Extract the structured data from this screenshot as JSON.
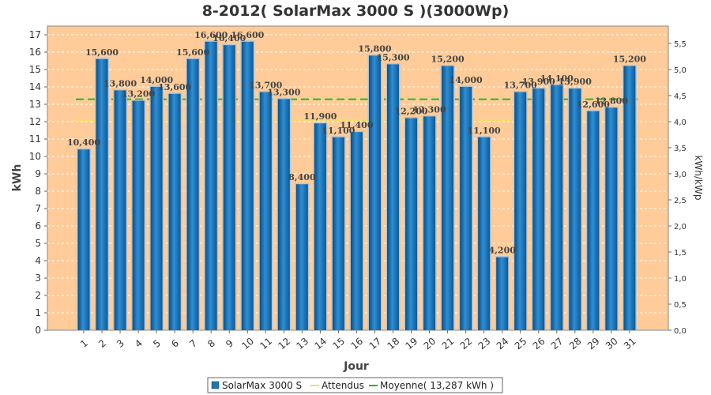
{
  "chart_data": {
    "type": "bar",
    "title": "8-2012( SolarMax 3000 S )(3000Wp)",
    "xlabel": "Jour",
    "ylabel": "kWh",
    "y2label": "kWh/kWp",
    "ylim": [
      0,
      17.5
    ],
    "y2lim": [
      0,
      5.8333
    ],
    "yticks": [
      0,
      1,
      2,
      3,
      4,
      5,
      6,
      7,
      8,
      9,
      10,
      11,
      12,
      13,
      14,
      15,
      16,
      17
    ],
    "y2ticks": [
      "0,0",
      "0,5",
      "1,0",
      "1,5",
      "2,0",
      "2,5",
      "3,0",
      "3,5",
      "4,0",
      "4,5",
      "5,0",
      "5,5"
    ],
    "categories": [
      "1",
      "2",
      "3",
      "4",
      "5",
      "6",
      "7",
      "8",
      "9",
      "10",
      "11",
      "12",
      "13",
      "14",
      "15",
      "16",
      "17",
      "18",
      "19",
      "20",
      "21",
      "22",
      "23",
      "24",
      "25",
      "26",
      "27",
      "28",
      "29",
      "30",
      "31"
    ],
    "series": [
      {
        "name": "SolarMax 3000 S",
        "values": [
          10.4,
          15.6,
          13.8,
          13.2,
          14.0,
          13.6,
          15.6,
          16.6,
          16.4,
          16.6,
          13.7,
          13.3,
          8.4,
          11.9,
          11.1,
          11.4,
          15.8,
          15.3,
          12.2,
          12.3,
          15.2,
          14.0,
          11.1,
          4.2,
          13.7,
          13.9,
          14.1,
          13.9,
          12.6,
          12.8,
          15.2
        ],
        "labels": [
          "10,400",
          "15,600",
          "13,800",
          "13,200",
          "14,000",
          "13,600",
          "15,600",
          "16,600",
          "16,400",
          "16,600",
          "13,700",
          "13,300",
          "8,400",
          "11,900",
          "11,100",
          "11,400",
          "15,800",
          "15,300",
          "12,200",
          "12,300",
          "15,200",
          "14,000",
          "11,100",
          "4,200",
          "13,700",
          "13,900",
          "14,100",
          "13,900",
          "12,600",
          "12,800",
          "15,200"
        ]
      }
    ],
    "reference_lines": [
      {
        "name": "Attendus",
        "value": 12.1,
        "color": "#f0e060"
      },
      {
        "name": "Moyenne( 13,287 kWh )",
        "value": 13.287,
        "color": "#22bb22"
      }
    ],
    "colors": {
      "plot_bg": "#ffcc99",
      "bar": "#1e78b4",
      "bar_border": "#b0c4d6"
    },
    "grid": true,
    "legend_position": "bottom"
  }
}
